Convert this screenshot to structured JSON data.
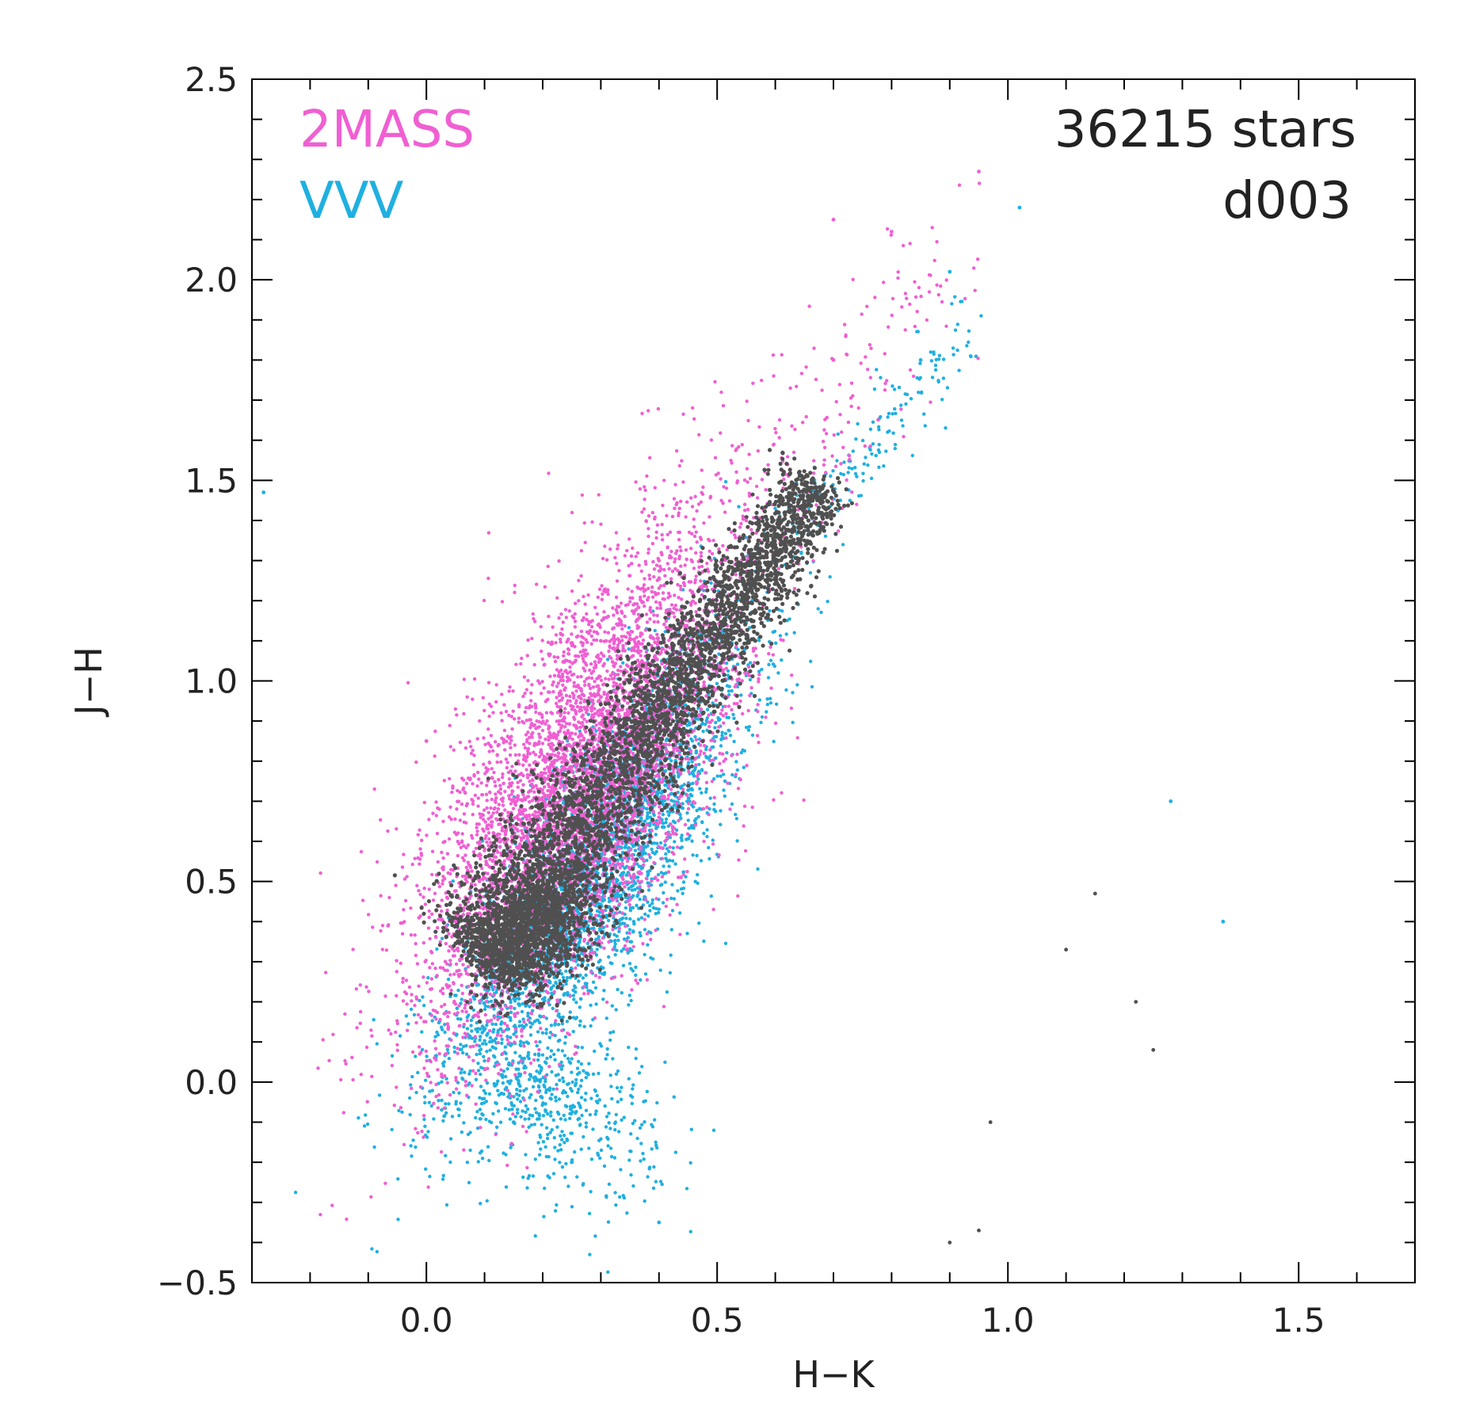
{
  "chart_data": {
    "type": "scatter",
    "xlabel": "H−K",
    "ylabel": "J−H",
    "xlim": [
      -0.3,
      1.7
    ],
    "ylim": [
      -0.5,
      2.5
    ],
    "xticks": [
      "0.0",
      "0.5",
      "1.0",
      "1.5"
    ],
    "yticks": [
      "−0.5",
      "0.0",
      "0.5",
      "1.0",
      "1.5",
      "2.0",
      "2.5"
    ],
    "grid": false,
    "legend": [
      {
        "label": "2MASS",
        "color": "#f05fd2"
      },
      {
        "label": "VVV",
        "color": "#1fb0e0"
      }
    ],
    "annotations": [
      "36215 stars",
      "d003"
    ],
    "colors": {
      "2MASS": "#f05fd2",
      "VVV": "#1fb0e0",
      "combined": "#505050"
    },
    "series": [
      {
        "name": "2MASS",
        "distribution": {
          "x_center": 0.27,
          "y_center": 0.75,
          "x_spread": 0.14,
          "y_spread": 0.32,
          "correlation": 0.7
        },
        "sample_points": [
          [
            0.05,
            0.4
          ],
          [
            0.15,
            0.7
          ],
          [
            0.3,
            1.1
          ],
          [
            0.4,
            1.3
          ],
          [
            0.55,
            1.4
          ],
          [
            0.7,
            1.8
          ],
          [
            0.95,
            2.27
          ],
          [
            0.8,
            2.12
          ],
          [
            0.7,
            2.15
          ],
          [
            0.0,
            0.85
          ]
        ]
      },
      {
        "name": "VVV",
        "distribution": {
          "x_center": 0.3,
          "y_center": 0.55,
          "x_spread": 0.13,
          "y_spread": 0.28,
          "correlation": 0.8
        },
        "sample_points": [
          [
            0.15,
            -0.1
          ],
          [
            0.25,
            -0.2
          ],
          [
            0.4,
            -0.35
          ],
          [
            0.85,
            1.8
          ],
          [
            0.9,
            2.02
          ],
          [
            1.02,
            2.18
          ],
          [
            1.28,
            0.7
          ],
          [
            1.37,
            0.4
          ],
          [
            -0.28,
            1.47
          ]
        ]
      },
      {
        "name": "combined",
        "distribution": {
          "start": [
            0.1,
            0.3
          ],
          "end": [
            0.68,
            1.5
          ],
          "width": 0.035
        },
        "sample_points": [
          [
            1.15,
            0.47
          ],
          [
            1.1,
            0.33
          ],
          [
            1.22,
            0.2
          ],
          [
            1.25,
            0.08
          ],
          [
            0.97,
            -0.1
          ],
          [
            0.9,
            -0.4
          ],
          [
            0.95,
            -0.37
          ]
        ]
      }
    ]
  }
}
